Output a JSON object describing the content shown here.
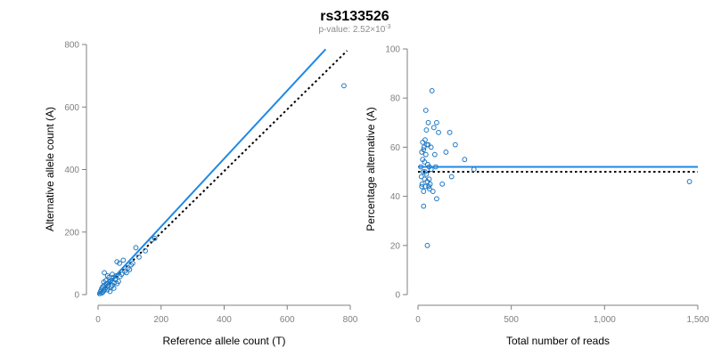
{
  "figure": {
    "title": "rs3133526",
    "subtitle_prefix": "p-value: 2.52×10",
    "subtitle_exponent": "-3"
  },
  "colors": {
    "points": "#1f78c4",
    "fit": "#1e88e5",
    "reference": "#000000",
    "axis": "#7f7f7f"
  },
  "chart_data": [
    {
      "type": "scatter",
      "xlabel": "Reference allele count (T)",
      "ylabel": "Alternative allele count (A)",
      "xlim": [
        0,
        800
      ],
      "ylim": [
        0,
        800
      ],
      "xticks": [
        0,
        200,
        400,
        600,
        800
      ],
      "xtick_labels": [
        "0",
        "200",
        "400",
        "600",
        "800"
      ],
      "yticks": [
        0,
        200,
        400,
        600,
        800
      ],
      "ytick_labels": [
        "0",
        "200",
        "400",
        "600",
        "800"
      ],
      "points": [
        [
          5,
          3
        ],
        [
          8,
          10
        ],
        [
          10,
          14
        ],
        [
          12,
          20
        ],
        [
          15,
          8
        ],
        [
          15,
          25
        ],
        [
          18,
          12
        ],
        [
          20,
          30
        ],
        [
          22,
          18
        ],
        [
          25,
          22
        ],
        [
          28,
          35
        ],
        [
          30,
          15
        ],
        [
          32,
          28
        ],
        [
          35,
          40
        ],
        [
          38,
          10
        ],
        [
          40,
          45
        ],
        [
          42,
          25
        ],
        [
          45,
          30
        ],
        [
          48,
          55
        ],
        [
          50,
          20
        ],
        [
          52,
          38
        ],
        [
          55,
          48
        ],
        [
          58,
          60
        ],
        [
          60,
          35
        ],
        [
          65,
          42
        ],
        [
          68,
          100
        ],
        [
          70,
          58
        ],
        [
          75,
          65
        ],
        [
          80,
          110
        ],
        [
          85,
          75
        ],
        [
          90,
          70
        ],
        [
          95,
          85
        ],
        [
          100,
          80
        ],
        [
          105,
          95
        ],
        [
          110,
          100
        ],
        [
          120,
          150
        ],
        [
          130,
          120
        ],
        [
          150,
          140
        ],
        [
          170,
          175
        ],
        [
          180,
          180
        ],
        [
          20,
          70
        ],
        [
          30,
          60
        ],
        [
          45,
          65
        ],
        [
          55,
          50
        ],
        [
          12,
          5
        ],
        [
          18,
          40
        ],
        [
          25,
          45
        ],
        [
          35,
          55
        ],
        [
          60,
          105
        ],
        [
          780,
          668
        ]
      ],
      "fit_line": {
        "name": "",
        "x": [
          0,
          722
        ],
        "y": [
          0,
          785
        ]
      },
      "reference_line": {
        "name": "",
        "x": [
          0,
          790
        ],
        "y": [
          0,
          780
        ]
      }
    },
    {
      "type": "scatter",
      "xlabel": "Total number of reads",
      "ylabel": "Percentage alternative (A)",
      "xlim": [
        0,
        1500
      ],
      "ylim": [
        0,
        100
      ],
      "xticks": [
        0,
        500,
        1000,
        1500
      ],
      "xtick_labels": [
        "0",
        "500",
        "1,000",
        "1,500"
      ],
      "yticks": [
        0,
        20,
        40,
        60,
        80,
        100
      ],
      "ytick_labels": [
        "0",
        "20",
        "40",
        "60",
        "80",
        "100"
      ],
      "points": [
        [
          15,
          52
        ],
        [
          18,
          48
        ],
        [
          20,
          58
        ],
        [
          22,
          45
        ],
        [
          25,
          55
        ],
        [
          25,
          62
        ],
        [
          28,
          50
        ],
        [
          30,
          42
        ],
        [
          30,
          36
        ],
        [
          32,
          60
        ],
        [
          35,
          54
        ],
        [
          35,
          47
        ],
        [
          38,
          63
        ],
        [
          40,
          44
        ],
        [
          42,
          75
        ],
        [
          42,
          57
        ],
        [
          45,
          67
        ],
        [
          45,
          49
        ],
        [
          48,
          61
        ],
        [
          50,
          46
        ],
        [
          50,
          20
        ],
        [
          52,
          53
        ],
        [
          55,
          61
        ],
        [
          58,
          44
        ],
        [
          60,
          52
        ],
        [
          62,
          43
        ],
        [
          65,
          45
        ],
        [
          70,
          60
        ],
        [
          75,
          83
        ],
        [
          80,
          42
        ],
        [
          85,
          68
        ],
        [
          90,
          57
        ],
        [
          95,
          52
        ],
        [
          100,
          70
        ],
        [
          100,
          39
        ],
        [
          110,
          66
        ],
        [
          130,
          45
        ],
        [
          150,
          58
        ],
        [
          170,
          66
        ],
        [
          180,
          48
        ],
        [
          200,
          61
        ],
        [
          250,
          55
        ],
        [
          300,
          51
        ],
        [
          30,
          59
        ],
        [
          38,
          50
        ],
        [
          55,
          70
        ],
        [
          60,
          47
        ],
        [
          20,
          44
        ],
        [
          70,
          51
        ],
        [
          1455,
          46
        ]
      ],
      "fit_line": {
        "name": "",
        "x": [
          0,
          1500
        ],
        "y": [
          52,
          52
        ]
      },
      "reference_line": {
        "name": "",
        "x": [
          0,
          1500
        ],
        "y": [
          50,
          50
        ]
      }
    }
  ]
}
